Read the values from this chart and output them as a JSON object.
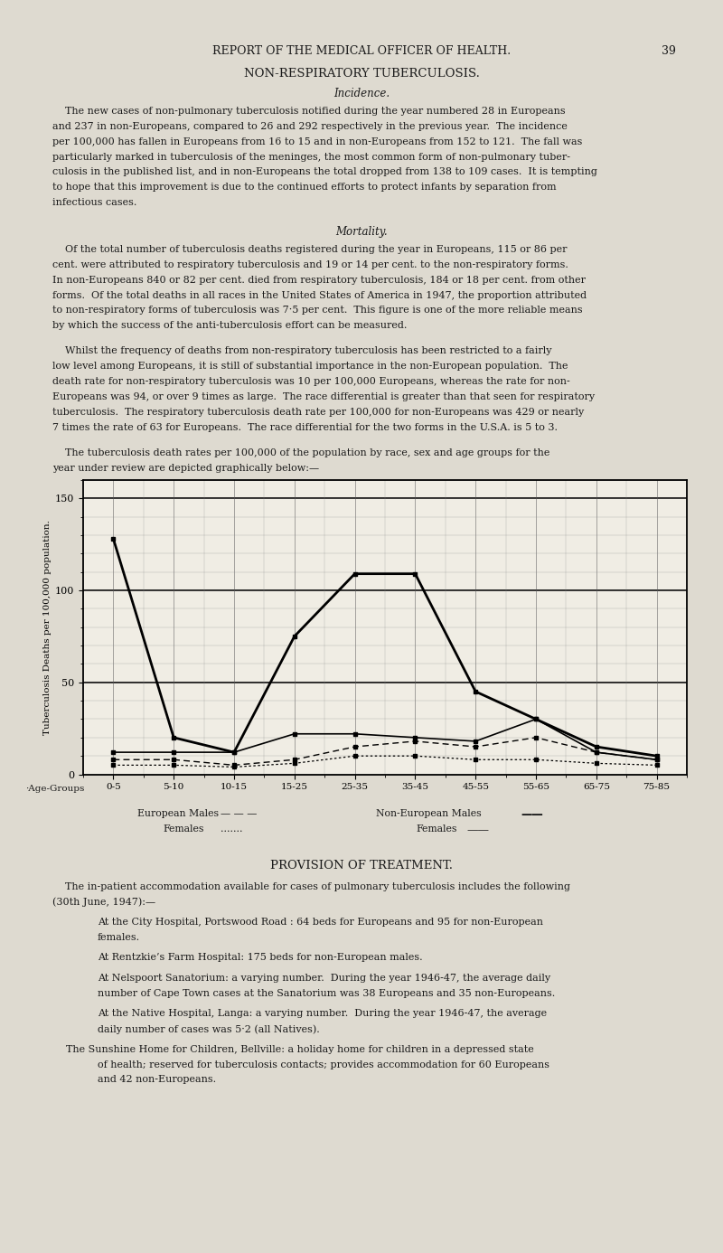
{
  "page_header": "REPORT OF THE MEDICAL OFFICER OF HEALTH.",
  "page_number": "39",
  "section_title": "NON-RESPIRATORY TUBERCULOSIS.",
  "subsection1": "Incidence.",
  "subsection2": "Mortality.",
  "age_groups": [
    "0-5",
    "5-10",
    "10-15",
    "15-25",
    "25-35",
    "35-45",
    "45-55",
    "55-65",
    "65-75",
    "75-85"
  ],
  "non_european_males": [
    128,
    20,
    12,
    75,
    109,
    109,
    45,
    30,
    15,
    10
  ],
  "non_european_females": [
    12,
    12,
    12,
    22,
    22,
    20,
    18,
    30,
    12,
    8
  ],
  "european_males": [
    8,
    8,
    5,
    8,
    15,
    18,
    15,
    20,
    12,
    8
  ],
  "european_females": [
    5,
    5,
    4,
    6,
    10,
    10,
    8,
    8,
    6,
    5
  ],
  "ylabel": "Tuberculosis Deaths per 100,000 population.",
  "yticks": [
    0,
    50,
    100,
    150
  ],
  "ylim": [
    0,
    160
  ],
  "page_bg": "#dedad0",
  "chart_bg": "#f0ede4",
  "provision_title": "PROVISION OF TREATMENT.",
  "text_color": "#1a1a1a"
}
